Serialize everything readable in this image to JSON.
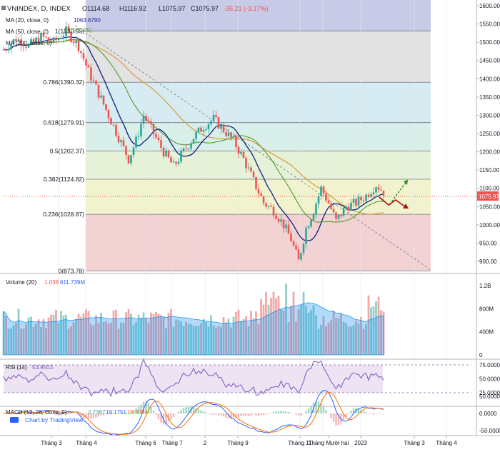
{
  "header": {
    "symbol": "VNINDEX, D, INDEX",
    "open": "O1114.68",
    "high": "H1116.92",
    "low": "L1075.97",
    "close": "C1075.97",
    "change": "-35.21 (-3.17%)"
  },
  "indicators": {
    "ma20": "MA (20, close, 0)",
    "ma20_value": "1063.8790",
    "ma50": "MA (50, close, 0)",
    "ma50_value": "1(1530.95)",
    "ma200": "MA (200, close, 0)",
    "volume": "Volume (20)",
    "volume_v1": "1.038",
    "volume_v2": "611.739M",
    "rsi": "RSI (14)",
    "rsi_value": "53.9503",
    "macd": "MACD (12, 26, close, 9)",
    "macd_v1": "2.7367",
    "macd_v2": "19.1751",
    "macd_v3": "16.4384"
  },
  "brand": "Chart by TradingView",
  "price_label": "1075.97",
  "colors": {
    "up": "#26a69a",
    "down": "#ef5350",
    "ma20": "#1f2b8c",
    "ma50": "#5f9e3a",
    "ma200": "#d89a3a",
    "grid": "#e0e3eb"
  },
  "chart_data": {
    "type": "candlestick",
    "title": "VNINDEX, D, INDEX",
    "price_axis": {
      "ylim": [
        860,
        1610
      ],
      "ticks": [
        "1600.00",
        "1550.00",
        "1500.00",
        "1450.00",
        "1400.00",
        "1350.00",
        "1300.00",
        "1250.00",
        "1200.00",
        "1150.00",
        "1100.00",
        "1050.00",
        "1000.00",
        "950.00",
        "900.00"
      ]
    },
    "x_ticks": [
      "Tháng 3",
      "Tháng 4",
      "Tháng 6",
      "Tháng 7",
      "2",
      "Tháng 9",
      "Tháng 11",
      "Tháng Mười hai",
      "2023",
      "Tháng 3",
      "Tháng 4"
    ],
    "fibonacci": [
      {
        "label": "1(1530.95)",
        "value": 1530.95
      },
      {
        "label": "0.786(1390.32)",
        "value": 1390.32
      },
      {
        "label": "0.618(1279.91)",
        "value": 1279.91
      },
      {
        "label": "0.5(1202.37)",
        "value": 1202.37
      },
      {
        "label": "0.382(1124.82)",
        "value": 1124.82
      },
      {
        "label": "0.236(1028.87)",
        "value": 1028.87
      },
      {
        "label": "0(873.78)",
        "value": 873.78
      }
    ],
    "price_path": [
      [
        0,
        1480
      ],
      [
        5,
        1510
      ],
      [
        10,
        1490
      ],
      [
        15,
        1515
      ],
      [
        20,
        1500
      ],
      [
        25,
        1530
      ],
      [
        30,
        1490
      ],
      [
        34,
        1420
      ],
      [
        38,
        1360
      ],
      [
        42,
        1300
      ],
      [
        46,
        1240
      ],
      [
        50,
        1180
      ],
      [
        53,
        1230
      ],
      [
        56,
        1300
      ],
      [
        60,
        1250
      ],
      [
        64,
        1200
      ],
      [
        68,
        1160
      ],
      [
        72,
        1200
      ],
      [
        76,
        1240
      ],
      [
        80,
        1270
      ],
      [
        84,
        1290
      ],
      [
        88,
        1260
      ],
      [
        92,
        1230
      ],
      [
        96,
        1180
      ],
      [
        100,
        1120
      ],
      [
        104,
        1060
      ],
      [
        108,
        1040
      ],
      [
        112,
        1000
      ],
      [
        115,
        960
      ],
      [
        118,
        900
      ],
      [
        121,
        990
      ],
      [
        124,
        1040
      ],
      [
        127,
        1100
      ],
      [
        130,
        1060
      ],
      [
        133,
        1010
      ],
      [
        137,
        1050
      ],
      [
        141,
        1060
      ],
      [
        145,
        1080
      ],
      [
        149,
        1110
      ],
      [
        152,
        1090
      ]
    ],
    "volume_axis": {
      "ticks": [
        "1.2B",
        "800M",
        "400M",
        "0"
      ]
    },
    "rsi_axis": {
      "ticks": [
        "75.0000",
        "50.0000",
        "25.0000"
      ]
    },
    "macd_axis": {
      "ticks": [
        "50.0000",
        "0.0000",
        "-50.0000"
      ]
    }
  }
}
